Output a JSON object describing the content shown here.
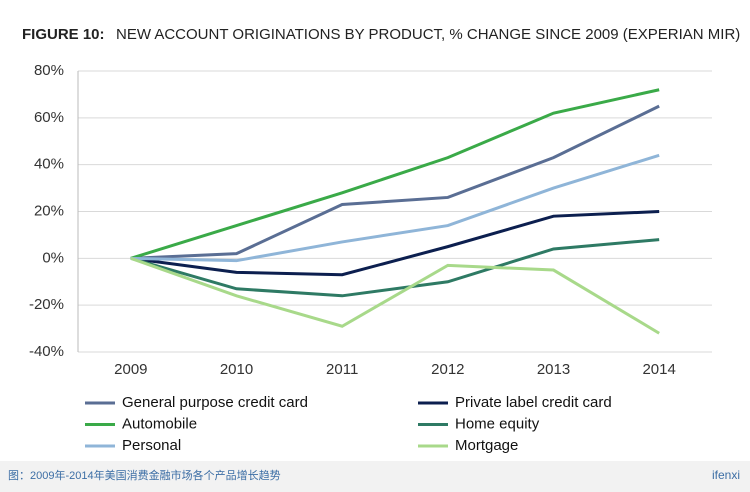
{
  "chart_data": {
    "type": "line",
    "figure_label": "FIGURE 10:",
    "title": "NEW ACCOUNT ORIGINATIONS BY PRODUCT, % CHANGE SINCE 2009 (EXPERIAN MIR)",
    "categories": [
      "2009",
      "2010",
      "2011",
      "2012",
      "2013",
      "2014"
    ],
    "series": [
      {
        "name": "General purpose credit card",
        "color": "#5a6e94",
        "values": [
          0,
          2,
          23,
          26,
          43,
          65
        ]
      },
      {
        "name": "Private label credit card",
        "color": "#0c1f4f",
        "values": [
          0,
          -6,
          -7,
          5,
          18,
          20
        ]
      },
      {
        "name": "Automobile",
        "color": "#3aaa48",
        "values": [
          0,
          14,
          28,
          43,
          62,
          72
        ]
      },
      {
        "name": "Home equity",
        "color": "#2e7a64",
        "values": [
          0,
          -13,
          -16,
          -10,
          4,
          8
        ]
      },
      {
        "name": "Personal",
        "color": "#8fb5d8",
        "values": [
          0,
          -1,
          7,
          14,
          30,
          44
        ]
      },
      {
        "name": "Mortgage",
        "color": "#a8d98a",
        "values": [
          0,
          -16,
          -29,
          -3,
          -5,
          -32
        ]
      }
    ],
    "ylim": [
      -40,
      80
    ],
    "yticks": [
      {
        "value": -40,
        "label": "-40%"
      },
      {
        "value": -20,
        "label": "-20%"
      },
      {
        "value": 0,
        "label": "0%"
      },
      {
        "value": 20,
        "label": "20%"
      },
      {
        "value": 40,
        "label": "40%"
      },
      {
        "value": 60,
        "label": "60%"
      },
      {
        "value": 80,
        "label": "80%"
      }
    ],
    "grid": true,
    "caption": "图：2009年-2014年美国消费金融市场各个产品增长趋势",
    "watermark": "ifenxi"
  }
}
